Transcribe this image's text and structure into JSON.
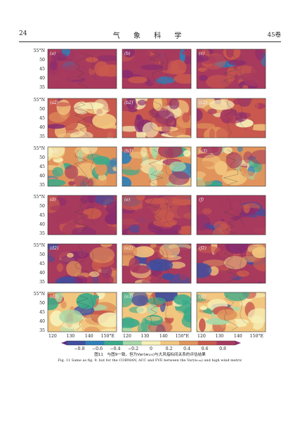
{
  "page": {
    "page_number": "24",
    "journal_title": "气 象 科 学",
    "volume": "45卷"
  },
  "figure": {
    "panel_labels": [
      [
        "(a)",
        "(b)",
        "(c)"
      ],
      [
        "(a2)",
        "(b2)",
        "(c2)"
      ],
      [
        "(a3)",
        "(b3)",
        "(c3)"
      ],
      [
        "(d)",
        "(e)",
        "(f)"
      ],
      [
        "(d2)",
        "(e2)",
        "(f2)"
      ],
      [
        "(d3)",
        "(e3)",
        "(f3)"
      ]
    ],
    "lat_ticks": [
      "55°N",
      "50",
      "45",
      "40",
      "35"
    ],
    "lon_ticks": [
      "120",
      "130",
      "140",
      "150°E"
    ],
    "colorbar": {
      "ticks": [
        "−0.8",
        "−0.6",
        "−0.4",
        "−0.2",
        "0",
        "0.2",
        "0.4",
        "0.6",
        "0.8"
      ],
      "colors": [
        "#5e2b7c",
        "#3f4fa0",
        "#2f80b8",
        "#3aaa8a",
        "#a6d8a8",
        "#f6f0b8",
        "#f2c67f",
        "#e0945c",
        "#c9594e",
        "#a83a5e",
        "#8a2c6e"
      ]
    }
  },
  "caption": {
    "cn": "图11　与图9一致，但为Var(w₁₀₀)与大风指标间关系的评估结果",
    "en": "Fig. 11   Same as fig. 9, but for the CORMAN, ACC and FVE between the Var(w₁₀₀) and high wind metric"
  }
}
